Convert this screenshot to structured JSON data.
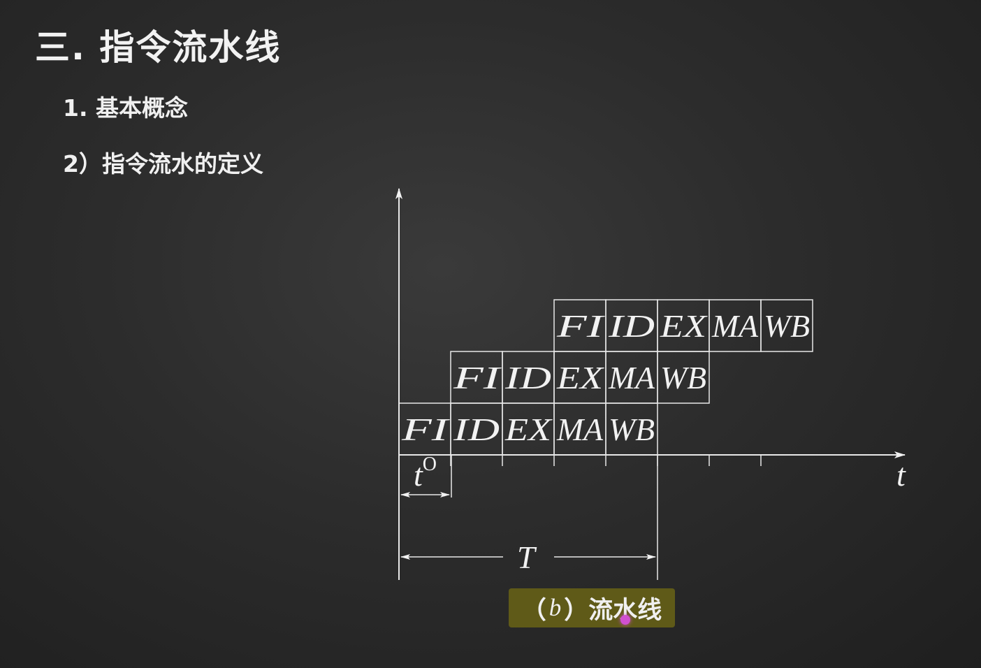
{
  "title": "三. 指令流水线",
  "subtitle1": "1. 基本概念",
  "subtitle2": "2）指令流水的定义",
  "stages": [
    "FI",
    "ID",
    "EX",
    "MA",
    "WB"
  ],
  "axis": {
    "time_label": "t",
    "stage_time_label": "t",
    "stage_time_superscript": "O",
    "period_label": "T"
  },
  "caption": {
    "open": "（",
    "letter": "b",
    "close": "）",
    "text": "流水线"
  },
  "colors": {
    "background": "#2c2c2c",
    "chalk": "#f2f2f2",
    "caption_bg": "#5f5a18"
  }
}
